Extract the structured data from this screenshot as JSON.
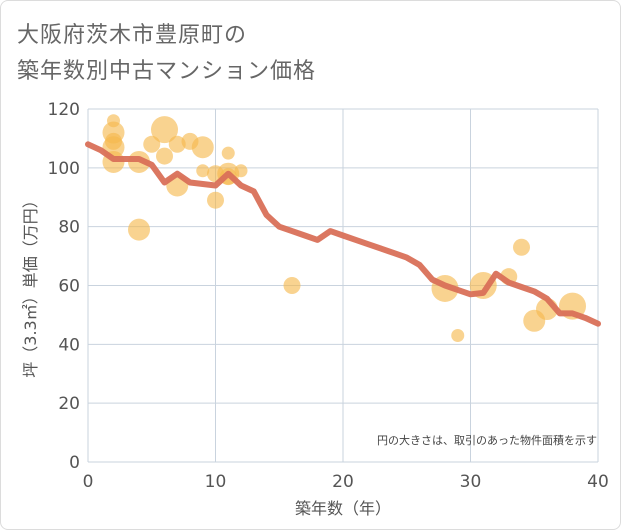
{
  "title_line1": "大阪府茨木市豊原町の",
  "title_line2": "築年数別中古マンション価格",
  "note": "円の大きさは、取引のあった物件面積を示す",
  "colors": {
    "bubble": "#f5b84c",
    "line": "#d97059",
    "grid": "#c9d3de",
    "text": "#555555"
  },
  "chart_data": {
    "type": "scatter",
    "xlabel": "築年数（年）",
    "ylabel": "坪（3.3㎡）単価（万円）",
    "xlim": [
      0,
      40
    ],
    "ylim": [
      0,
      120
    ],
    "xticks": [
      "0",
      "10",
      "20",
      "30",
      "40"
    ],
    "yticks": [
      "0",
      "20",
      "40",
      "60",
      "80",
      "100",
      "120"
    ],
    "grid": true,
    "points": [
      {
        "x": 2,
        "y": 116,
        "s": 1
      },
      {
        "x": 2,
        "y": 112,
        "s": 3
      },
      {
        "x": 2,
        "y": 109,
        "s": 2
      },
      {
        "x": 2,
        "y": 107,
        "s": 3
      },
      {
        "x": 2,
        "y": 102,
        "s": 3
      },
      {
        "x": 4,
        "y": 102,
        "s": 3
      },
      {
        "x": 4,
        "y": 79,
        "s": 3
      },
      {
        "x": 5,
        "y": 108,
        "s": 2
      },
      {
        "x": 6,
        "y": 113,
        "s": 4
      },
      {
        "x": 6,
        "y": 104,
        "s": 2
      },
      {
        "x": 7,
        "y": 108,
        "s": 2
      },
      {
        "x": 7,
        "y": 94,
        "s": 3
      },
      {
        "x": 8,
        "y": 109,
        "s": 2
      },
      {
        "x": 9,
        "y": 107,
        "s": 3
      },
      {
        "x": 9,
        "y": 99,
        "s": 1
      },
      {
        "x": 10,
        "y": 98,
        "s": 2
      },
      {
        "x": 10,
        "y": 89,
        "s": 2
      },
      {
        "x": 11,
        "y": 105,
        "s": 1
      },
      {
        "x": 11,
        "y": 98,
        "s": 3
      },
      {
        "x": 11,
        "y": 97,
        "s": 2
      },
      {
        "x": 12,
        "y": 99,
        "s": 1
      },
      {
        "x": 16,
        "y": 60,
        "s": 2
      },
      {
        "x": 28,
        "y": 59,
        "s": 4
      },
      {
        "x": 29,
        "y": 43,
        "s": 1
      },
      {
        "x": 31,
        "y": 60,
        "s": 4
      },
      {
        "x": 33,
        "y": 63,
        "s": 2
      },
      {
        "x": 34,
        "y": 73,
        "s": 2
      },
      {
        "x": 35,
        "y": 48,
        "s": 3
      },
      {
        "x": 36,
        "y": 52,
        "s": 3
      },
      {
        "x": 38,
        "y": 53,
        "s": 4
      }
    ],
    "trend": {
      "x": [
        0,
        1,
        2,
        3,
        4,
        5,
        6,
        7,
        8,
        9,
        10,
        11,
        12,
        13,
        14,
        15,
        16,
        17,
        18,
        19,
        20,
        21,
        22,
        23,
        24,
        25,
        26,
        27,
        28,
        29,
        30,
        31,
        32,
        33,
        34,
        35,
        36,
        37,
        38,
        39,
        40
      ],
      "y": [
        108,
        106,
        103,
        103,
        103,
        101,
        95,
        98,
        95,
        94.5,
        94,
        98,
        94,
        92,
        84,
        80,
        78.5,
        77,
        75.5,
        78.5,
        77,
        75.5,
        74,
        72.5,
        71,
        69.5,
        67,
        62,
        60,
        58.5,
        57,
        57.5,
        64,
        61,
        59.5,
        58,
        55.5,
        50.5,
        50.5,
        49,
        47
      ]
    }
  }
}
